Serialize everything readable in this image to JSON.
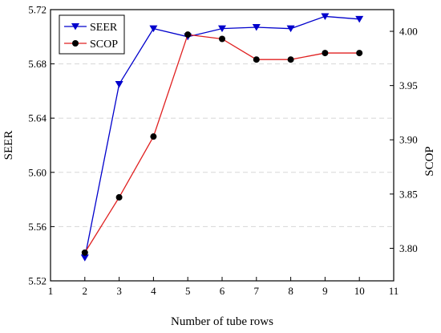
{
  "chart_data": {
    "type": "line",
    "xlabel": "Number of tube rows",
    "ylabel_left": "SEER",
    "ylabel_right": "SCOP",
    "x_ticks": [
      1,
      2,
      3,
      4,
      5,
      6,
      7,
      8,
      9,
      10,
      11
    ],
    "x_tick_labels": [
      "1",
      "2",
      "3",
      "4",
      "5",
      "6",
      "7",
      "8",
      "9",
      "10",
      "11"
    ],
    "xlim": [
      1,
      11
    ],
    "ylim_left": [
      5.52,
      5.72
    ],
    "y_ticks_left": [
      5.52,
      5.56,
      5.6,
      5.64,
      5.68,
      5.72
    ],
    "y_tick_labels_left": [
      "5.52",
      "5.56",
      "5.60",
      "5.64",
      "5.68",
      "5.72"
    ],
    "ylim_right": [
      3.77,
      4.02
    ],
    "y_ticks_right": [
      3.8,
      3.85,
      3.9,
      3.95,
      4.0
    ],
    "y_tick_labels_right": [
      "3.80",
      "3.85",
      "3.90",
      "3.95",
      "4.00"
    ],
    "legend_position": "top-left",
    "grid": "dashed horizontal",
    "series": [
      {
        "name": "SEER",
        "axis": "left",
        "color": "#0000cc",
        "marker": "triangle-down",
        "x": [
          2,
          3,
          4,
          5,
          6,
          7,
          8,
          9,
          10
        ],
        "values": [
          5.537,
          5.665,
          5.706,
          5.7,
          5.706,
          5.707,
          5.706,
          5.715,
          5.713
        ]
      },
      {
        "name": "SCOP",
        "axis": "right",
        "color": "#e02020",
        "marker": "circle",
        "x": [
          2,
          3,
          4,
          5,
          6,
          7,
          8,
          9,
          10
        ],
        "values": [
          3.796,
          3.847,
          3.903,
          3.997,
          3.993,
          3.974,
          3.974,
          3.98,
          3.98
        ]
      }
    ]
  }
}
